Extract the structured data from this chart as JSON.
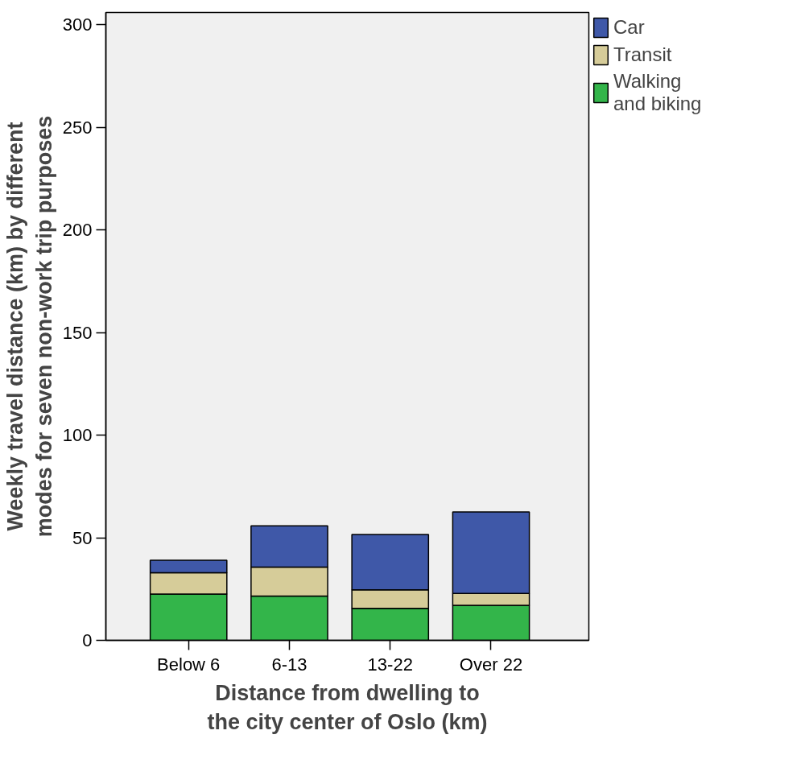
{
  "chart_data": {
    "type": "bar",
    "stacked": true,
    "xlabel": "Distance from dwelling to the city center of Oslo (km)",
    "ylabel": "Weekly travel distance (km) by different modes for seven non-work trip purposes",
    "categories": [
      "Below 6",
      "6-13",
      "13-22",
      "Over 22"
    ],
    "series": [
      {
        "name": "Walking and biking",
        "color": "#33b54a",
        "values": [
          22.6,
          21.6,
          15.6,
          17.1
        ]
      },
      {
        "name": "Transit",
        "color": "#d6cc99",
        "values": [
          10.4,
          14.1,
          9.0,
          5.8
        ]
      },
      {
        "name": "Car",
        "color": "#3f58a8",
        "values": [
          6.0,
          20.1,
          27.0,
          39.7
        ]
      }
    ],
    "ylim": [
      0,
      306
    ],
    "yticks": [
      0,
      50,
      100,
      150,
      200,
      250,
      300
    ],
    "grid": false,
    "legend": "top right"
  }
}
